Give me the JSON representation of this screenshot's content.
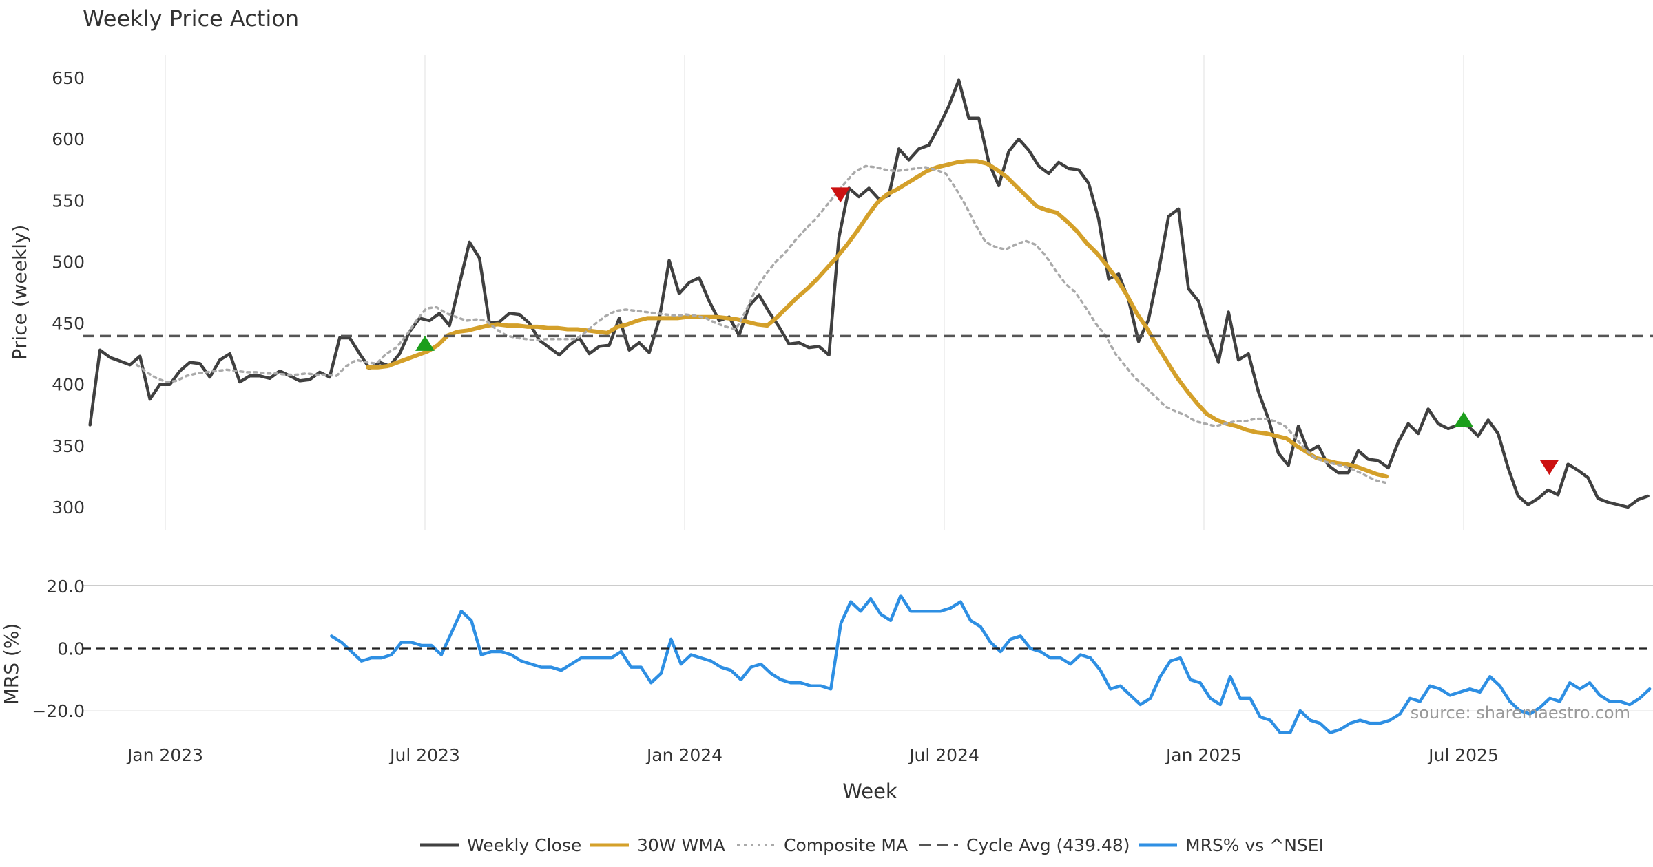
{
  "chart_data": [
    {
      "type": "line",
      "title": "Weekly Price Action",
      "xlabel": "",
      "ylabel": "Price (weekly)",
      "yticks": [
        300,
        350,
        400,
        450,
        500,
        550,
        600,
        650
      ],
      "ylim": [
        280,
        660
      ],
      "xticks": [
        {
          "label": "Jan 2023",
          "t": 2023.0
        },
        {
          "label": "Jul 2023",
          "t": 2023.5
        },
        {
          "label": "Jan 2024",
          "t": 2024.0
        },
        {
          "label": "Jul 2024",
          "t": 2024.5
        },
        {
          "label": "Jan 2025",
          "t": 2025.0
        },
        {
          "label": "Jul 2025",
          "t": 2025.5
        }
      ],
      "xlim": [
        2022.85,
        2025.84
      ],
      "series": [
        {
          "name": "Weekly Close",
          "color": "#404040",
          "t0": 2022.855,
          "dt": 0.01923,
          "values": [
            367,
            428,
            422,
            419,
            416,
            423,
            388,
            400,
            400,
            411,
            418,
            417,
            406,
            420,
            425,
            402,
            407,
            407,
            405,
            411,
            407,
            403,
            404,
            410,
            406,
            438,
            438,
            425,
            413,
            418,
            415,
            425,
            443,
            454,
            452,
            458,
            448,
            482,
            516,
            503,
            450,
            451,
            458,
            457,
            450,
            436,
            430,
            424,
            432,
            438,
            425,
            431,
            432,
            454,
            428,
            434,
            426,
            453,
            501,
            474,
            483,
            487,
            468,
            452,
            455,
            440,
            464,
            473,
            459,
            447,
            433,
            434,
            430,
            431,
            424,
            520,
            560,
            553,
            560,
            551,
            554,
            592,
            583,
            592,
            595,
            610,
            627,
            648,
            617,
            617,
            581,
            562,
            590,
            600,
            591,
            578,
            572,
            581,
            576,
            575,
            564,
            535,
            486,
            490,
            469,
            435,
            453,
            492,
            537,
            543,
            478,
            468,
            440,
            418,
            459,
            420,
            425,
            394,
            372,
            344,
            334,
            366,
            345,
            350,
            334,
            328,
            328,
            346,
            339,
            338,
            332,
            353,
            368,
            360,
            380,
            368,
            364,
            367,
            366,
            358,
            371,
            360,
            332,
            309,
            302,
            307,
            314,
            310,
            335,
            330,
            324,
            307,
            304,
            302,
            300,
            306,
            309
          ]
        },
        {
          "name": "30W WMA",
          "color": "#D4A02A",
          "t0": 2023.39,
          "dt": 0.01923,
          "values": [
            414,
            414,
            415,
            418,
            421,
            424,
            427,
            432,
            440,
            443,
            444,
            446,
            448,
            449,
            448,
            448,
            447,
            447,
            446,
            446,
            445,
            445,
            444,
            443,
            442,
            447,
            449,
            452,
            454,
            454,
            454,
            454,
            455,
            455,
            455,
            455,
            454,
            453,
            451,
            449,
            448,
            455,
            463,
            471,
            478,
            486,
            495,
            504,
            514,
            525,
            537,
            548,
            555,
            559,
            564,
            569,
            574,
            577,
            579,
            581,
            582,
            582,
            580,
            575,
            569,
            561,
            553,
            545,
            542,
            540,
            533,
            525,
            515,
            507,
            497,
            486,
            473,
            458,
            446,
            432,
            419,
            406,
            395,
            385,
            376,
            371,
            368,
            366,
            363,
            361,
            360,
            358,
            356,
            350,
            345,
            340,
            338,
            336,
            335,
            333,
            330,
            327,
            325
          ]
        },
        {
          "name": "Composite MA",
          "color": "#AAAAAA",
          "t0": 2022.945,
          "dt": 0.01923,
          "values": [
            416,
            410,
            405,
            402,
            403,
            407,
            409,
            410,
            411,
            412,
            411,
            410,
            410,
            409,
            409,
            408,
            408,
            409,
            408,
            408,
            407,
            415,
            420,
            418,
            417,
            425,
            430,
            440,
            452,
            462,
            463,
            458,
            455,
            452,
            453,
            452,
            445,
            440,
            438,
            437,
            436,
            437,
            437,
            437,
            437,
            443,
            450,
            456,
            460,
            461,
            460,
            459,
            458,
            457,
            456,
            457,
            456,
            454,
            450,
            447,
            445,
            460,
            478,
            490,
            500,
            508,
            518,
            527,
            535,
            545,
            555,
            565,
            574,
            578,
            577,
            575,
            574,
            575,
            576,
            577,
            575,
            572,
            560,
            546,
            530,
            516,
            512,
            510,
            514,
            517,
            514,
            505,
            493,
            482,
            475,
            463,
            450,
            440,
            425,
            415,
            405,
            398,
            390,
            382,
            378,
            375,
            370,
            368,
            366,
            368,
            370,
            370,
            372,
            372,
            370,
            366,
            357,
            347,
            340,
            337,
            335,
            333,
            330,
            326,
            322,
            320
          ]
        },
        {
          "name": "Cycle Avg (439.48)",
          "color": "#555555",
          "values": [
            439.48
          ]
        }
      ],
      "markers": [
        {
          "type": "buy",
          "t": 2023.5,
          "y": 433,
          "color": "#1C9E1C"
        },
        {
          "type": "sell",
          "t": 2024.3,
          "y": 555,
          "color": "#CC1111"
        },
        {
          "type": "buy",
          "t": 2025.5,
          "y": 371,
          "color": "#1C9E1C"
        },
        {
          "type": "sell",
          "t": 2025.665,
          "y": 333,
          "color": "#CC1111"
        }
      ]
    },
    {
      "type": "line",
      "title": "",
      "xlabel": "Week",
      "ylabel": "MRS (%)",
      "yticks": [
        20.0,
        0.0,
        -20.0
      ],
      "ytick_labels": [
        "20.0",
        "0.0",
        "−20.0"
      ],
      "ylim": [
        -29,
        21
      ],
      "xlim": [
        2022.85,
        2025.84
      ],
      "series": [
        {
          "name": "MRS% vs ^NSEI",
          "color": "#2E8FE3",
          "t0": 2023.32,
          "dt": 0.01923,
          "values": [
            4,
            2,
            -1,
            -4,
            -3,
            -3,
            -2,
            2,
            2,
            1,
            1,
            -2,
            5,
            12,
            9,
            -2,
            -1,
            -1,
            -2,
            -4,
            -5,
            -6,
            -6,
            -7,
            -5,
            -3,
            -3,
            -3,
            -3,
            -1,
            -6,
            -6,
            -11,
            -8,
            3,
            -5,
            -2,
            -3,
            -4,
            -6,
            -7,
            -10,
            -6,
            -5,
            -8,
            -10,
            -11,
            -11,
            -12,
            -12,
            -13,
            8,
            15,
            12,
            16,
            11,
            9,
            17,
            12,
            12,
            12,
            12,
            13,
            15,
            9,
            7,
            2,
            -1,
            3,
            4,
            0,
            -1,
            -3,
            -3,
            -5,
            -2,
            -3,
            -7,
            -13,
            -12,
            -15,
            -18,
            -16,
            -9,
            -4,
            -3,
            -10,
            -11,
            -16,
            -18,
            -9,
            -16,
            -16,
            -22,
            -23,
            -27,
            -27,
            -20,
            -23,
            -24,
            -27,
            -26,
            -24,
            -23,
            -24,
            -24,
            -23,
            -21,
            -16,
            -17,
            -12,
            -13,
            -15,
            -14,
            -13,
            -14,
            -9,
            -12,
            -17,
            -20,
            -21,
            -19,
            -16,
            -17,
            -11,
            -13,
            -11,
            -15,
            -17,
            -17,
            -18,
            -16,
            -13
          ]
        },
        {
          "name": "zero",
          "color": "#222222",
          "values": [
            0
          ]
        }
      ]
    }
  ],
  "xticks_labels": [
    "Jan 2023",
    "Jul 2023",
    "Jan 2024",
    "Jul 2024",
    "Jan 2025",
    "Jul 2025"
  ],
  "source": "source: sharemaestro.com",
  "legend": {
    "placement": "bottom-center",
    "items": [
      {
        "label": "Weekly Close",
        "color": "#404040",
        "style": "solid"
      },
      {
        "label": "30W WMA",
        "color": "#D4A02A",
        "style": "solid"
      },
      {
        "label": "Composite MA",
        "color": "#AAAAAA",
        "style": "dotted"
      },
      {
        "label": "Cycle Avg (439.48)",
        "color": "#555555",
        "style": "dashed"
      },
      {
        "label": "MRS% vs ^NSEI",
        "color": "#2E8FE3",
        "style": "solid"
      }
    ]
  }
}
